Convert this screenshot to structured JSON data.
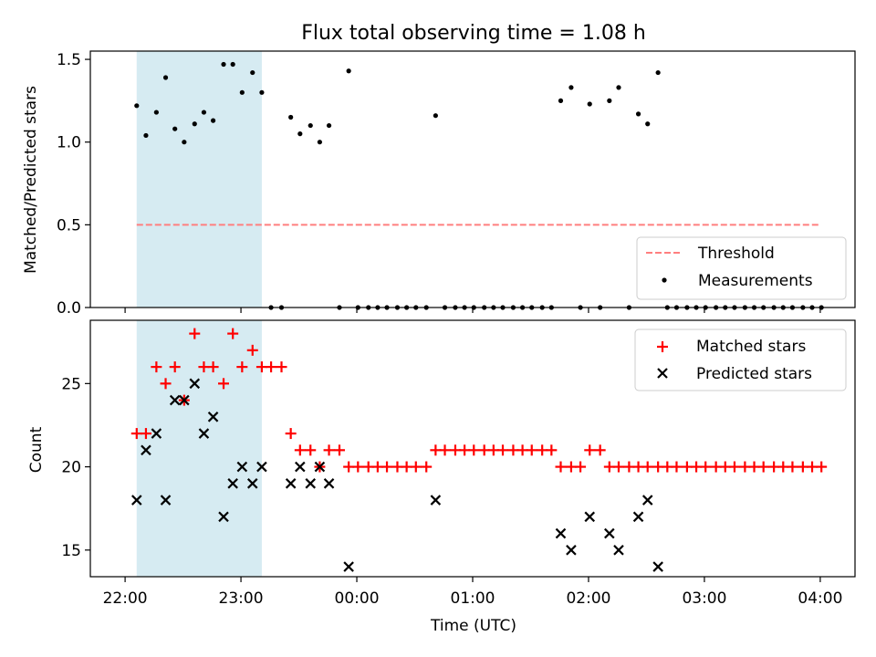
{
  "figure": {
    "title": "Flux total observing time = 1.08 h",
    "xlabel": "Time (UTC)"
  },
  "colors": {
    "threshold": "#ff7f7f",
    "measurement": "#000000",
    "matched": "#ff0000",
    "predicted": "#000000",
    "shade": "#add8e6"
  },
  "chart_data": [
    {
      "type": "scatter",
      "panel": "top",
      "ylabel": "Matched/Predicted stars",
      "xlim": [
        -0.3,
        6.3
      ],
      "ylim": [
        0,
        1.55
      ],
      "yticks": [
        0.0,
        0.5,
        1.0,
        1.5
      ],
      "ytick_labels": [
        "0.0",
        "0.5",
        "1.0",
        "1.5"
      ],
      "shaded_span": [
        0.1,
        1.18
      ],
      "legend": {
        "position": "lower-right",
        "entries": [
          "Threshold",
          "Measurements"
        ]
      },
      "threshold": {
        "name": "Threshold",
        "value": 0.5,
        "x_range": [
          0.1,
          6.0
        ]
      },
      "series": [
        {
          "name": "Measurements",
          "points": [
            [
              0.1,
              1.22
            ],
            [
              0.18,
              1.04
            ],
            [
              0.27,
              1.18
            ],
            [
              0.35,
              1.39
            ],
            [
              0.43,
              1.08
            ],
            [
              0.51,
              1.0
            ],
            [
              0.6,
              1.11
            ],
            [
              0.68,
              1.18
            ],
            [
              0.76,
              1.13
            ],
            [
              0.85,
              1.47
            ],
            [
              0.93,
              1.47
            ],
            [
              1.01,
              1.3
            ],
            [
              1.1,
              1.42
            ],
            [
              1.18,
              1.3
            ],
            [
              1.26,
              0.0
            ],
            [
              1.35,
              0.0
            ],
            [
              1.43,
              1.15
            ],
            [
              1.51,
              1.05
            ],
            [
              1.6,
              1.1
            ],
            [
              1.68,
              1.0
            ],
            [
              1.76,
              1.1
            ],
            [
              1.85,
              0.0
            ],
            [
              1.93,
              1.43
            ],
            [
              2.01,
              0.0
            ],
            [
              2.1,
              0.0
            ],
            [
              2.18,
              0.0
            ],
            [
              2.26,
              0.0
            ],
            [
              2.35,
              0.0
            ],
            [
              2.43,
              0.0
            ],
            [
              2.51,
              0.0
            ],
            [
              2.6,
              0.0
            ],
            [
              2.68,
              1.16
            ],
            [
              2.76,
              0.0
            ],
            [
              2.85,
              0.0
            ],
            [
              2.93,
              0.0
            ],
            [
              3.01,
              0.0
            ],
            [
              3.1,
              0.0
            ],
            [
              3.18,
              0.0
            ],
            [
              3.26,
              0.0
            ],
            [
              3.35,
              0.0
            ],
            [
              3.43,
              0.0
            ],
            [
              3.51,
              0.0
            ],
            [
              3.6,
              0.0
            ],
            [
              3.68,
              0.0
            ],
            [
              3.76,
              1.25
            ],
            [
              3.85,
              1.33
            ],
            [
              3.93,
              0.0
            ],
            [
              4.01,
              1.23
            ],
            [
              4.1,
              0.0
            ],
            [
              4.18,
              1.25
            ],
            [
              4.26,
              1.33
            ],
            [
              4.35,
              0.0
            ],
            [
              4.43,
              1.17
            ],
            [
              4.51,
              1.11
            ],
            [
              4.6,
              1.42
            ],
            [
              4.68,
              0.0
            ],
            [
              4.76,
              0.0
            ],
            [
              4.85,
              0.0
            ],
            [
              4.93,
              0.0
            ],
            [
              5.01,
              0.0
            ],
            [
              5.1,
              0.0
            ],
            [
              5.18,
              0.0
            ],
            [
              5.26,
              0.0
            ],
            [
              5.35,
              0.0
            ],
            [
              5.43,
              0.0
            ],
            [
              5.51,
              0.0
            ],
            [
              5.6,
              0.0
            ],
            [
              5.68,
              0.0
            ],
            [
              5.76,
              0.0
            ],
            [
              5.85,
              0.0
            ],
            [
              5.93,
              0.0
            ],
            [
              6.01,
              0.0
            ]
          ]
        }
      ]
    },
    {
      "type": "scatter",
      "panel": "bottom",
      "ylabel": "Count",
      "xlabel": "Time (UTC)",
      "xlim": [
        -0.3,
        6.3
      ],
      "ylim": [
        13.4,
        28.8
      ],
      "xticks": [
        0,
        1,
        2,
        3,
        4,
        5,
        6
      ],
      "xtick_labels": [
        "22:00",
        "23:00",
        "00:00",
        "01:00",
        "02:00",
        "03:00",
        "04:00"
      ],
      "yticks": [
        15,
        20,
        25
      ],
      "ytick_labels": [
        "15",
        "20",
        "25"
      ],
      "shaded_span": [
        0.1,
        1.18
      ],
      "legend": {
        "position": "top-right",
        "entries": [
          "Matched stars",
          "Predicted stars"
        ]
      },
      "series": [
        {
          "name": "Matched stars",
          "points": [
            [
              0.1,
              22
            ],
            [
              0.18,
              22
            ],
            [
              0.27,
              26
            ],
            [
              0.35,
              25
            ],
            [
              0.43,
              26
            ],
            [
              0.51,
              24
            ],
            [
              0.6,
              28
            ],
            [
              0.68,
              26
            ],
            [
              0.76,
              26
            ],
            [
              0.85,
              25
            ],
            [
              0.93,
              28
            ],
            [
              1.01,
              26
            ],
            [
              1.1,
              27
            ],
            [
              1.18,
              26
            ],
            [
              1.26,
              26
            ],
            [
              1.35,
              26
            ],
            [
              1.43,
              22
            ],
            [
              1.51,
              21
            ],
            [
              1.6,
              21
            ],
            [
              1.68,
              20
            ],
            [
              1.76,
              21
            ],
            [
              1.85,
              21
            ],
            [
              1.93,
              20
            ],
            [
              2.01,
              20
            ],
            [
              2.1,
              20
            ],
            [
              2.18,
              20
            ],
            [
              2.26,
              20
            ],
            [
              2.35,
              20
            ],
            [
              2.43,
              20
            ],
            [
              2.51,
              20
            ],
            [
              2.6,
              20
            ],
            [
              2.68,
              21
            ],
            [
              2.76,
              21
            ],
            [
              2.85,
              21
            ],
            [
              2.93,
              21
            ],
            [
              3.01,
              21
            ],
            [
              3.1,
              21
            ],
            [
              3.18,
              21
            ],
            [
              3.26,
              21
            ],
            [
              3.35,
              21
            ],
            [
              3.43,
              21
            ],
            [
              3.51,
              21
            ],
            [
              3.6,
              21
            ],
            [
              3.68,
              21
            ],
            [
              3.76,
              20
            ],
            [
              3.85,
              20
            ],
            [
              3.93,
              20
            ],
            [
              4.01,
              21
            ],
            [
              4.1,
              21
            ],
            [
              4.18,
              20
            ],
            [
              4.26,
              20
            ],
            [
              4.35,
              20
            ],
            [
              4.43,
              20
            ],
            [
              4.51,
              20
            ],
            [
              4.6,
              20
            ],
            [
              4.68,
              20
            ],
            [
              4.76,
              20
            ],
            [
              4.85,
              20
            ],
            [
              4.93,
              20
            ],
            [
              5.01,
              20
            ],
            [
              5.1,
              20
            ],
            [
              5.18,
              20
            ],
            [
              5.26,
              20
            ],
            [
              5.35,
              20
            ],
            [
              5.43,
              20
            ],
            [
              5.51,
              20
            ],
            [
              5.6,
              20
            ],
            [
              5.68,
              20
            ],
            [
              5.76,
              20
            ],
            [
              5.85,
              20
            ],
            [
              5.93,
              20
            ],
            [
              6.01,
              20
            ]
          ]
        },
        {
          "name": "Predicted stars",
          "points": [
            [
              0.1,
              18
            ],
            [
              0.18,
              21
            ],
            [
              0.27,
              22
            ],
            [
              0.35,
              18
            ],
            [
              0.43,
              24
            ],
            [
              0.51,
              24
            ],
            [
              0.6,
              25
            ],
            [
              0.68,
              22
            ],
            [
              0.76,
              23
            ],
            [
              0.85,
              17
            ],
            [
              0.93,
              19
            ],
            [
              1.01,
              20
            ],
            [
              1.1,
              19
            ],
            [
              1.18,
              20
            ],
            [
              1.43,
              19
            ],
            [
              1.51,
              20
            ],
            [
              1.6,
              19
            ],
            [
              1.68,
              20
            ],
            [
              1.76,
              19
            ],
            [
              1.93,
              14
            ],
            [
              2.68,
              18
            ],
            [
              3.76,
              16
            ],
            [
              3.85,
              15
            ],
            [
              4.01,
              17
            ],
            [
              4.18,
              16
            ],
            [
              4.26,
              15
            ],
            [
              4.43,
              17
            ],
            [
              4.51,
              18
            ],
            [
              4.6,
              14
            ]
          ]
        }
      ]
    }
  ]
}
